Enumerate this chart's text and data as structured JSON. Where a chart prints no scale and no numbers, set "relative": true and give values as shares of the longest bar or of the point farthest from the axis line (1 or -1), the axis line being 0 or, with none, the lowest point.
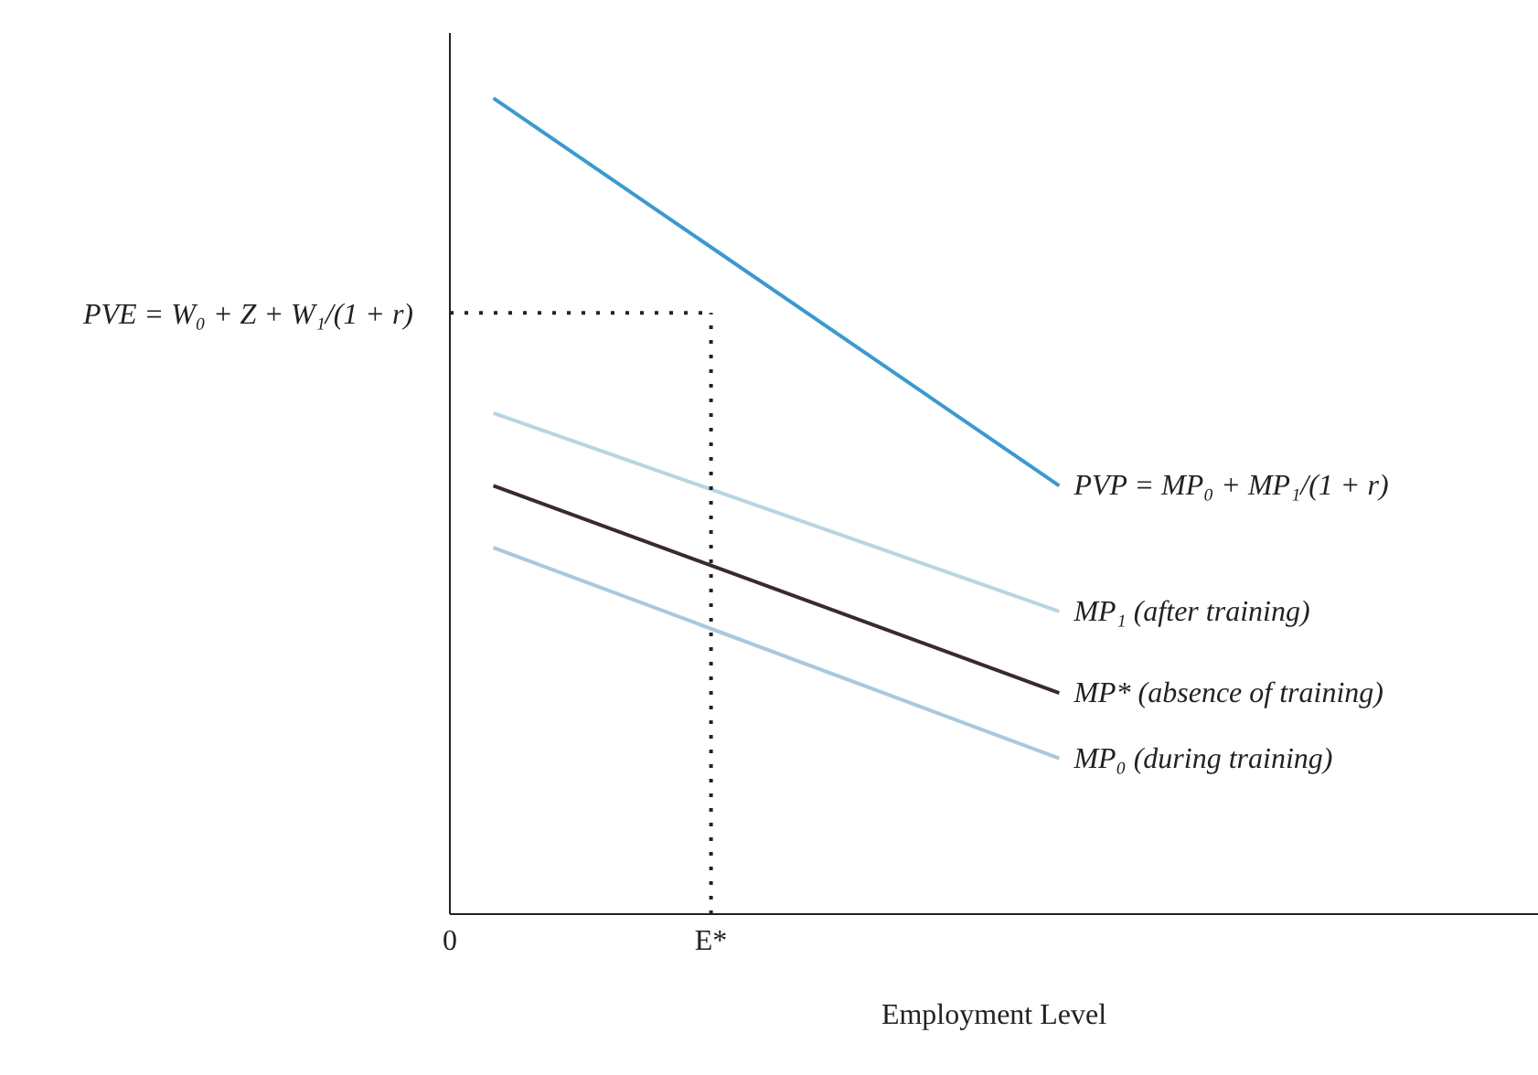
{
  "chart_data": {
    "type": "line",
    "relative": true,
    "xlabel": "Employment Level",
    "legend": false,
    "grid": false,
    "marker": "none",
    "categories": [
      "0",
      null,
      null,
      null,
      null,
      null,
      "E*",
      null,
      null,
      null,
      null,
      null,
      null,
      null,
      null,
      null,
      null,
      null,
      null,
      null,
      null,
      null,
      null,
      null,
      null,
      null
    ],
    "series": [
      {
        "name": "PVP = MP₀ + MP₁/(1 + r)",
        "color": "#3a9ad0",
        "values": [
          null,
          1,
          null,
          null,
          null,
          null,
          null,
          null,
          null,
          null,
          null,
          null,
          null,
          null,
          0.525,
          null,
          null,
          null,
          null,
          null,
          null,
          null,
          null,
          null,
          null,
          null
        ]
      },
      {
        "name": "MP₁ (after training)",
        "color": "#b9d4e3",
        "values": [
          null,
          0.614,
          null,
          null,
          null,
          null,
          null,
          null,
          null,
          null,
          null,
          null,
          null,
          null,
          0.371,
          null,
          null,
          null,
          null,
          null,
          null,
          null,
          null,
          null,
          null,
          null
        ]
      },
      {
        "name": "MP* (absence of training)",
        "color": "#3a2a30",
        "values": [
          null,
          0.525,
          null,
          null,
          null,
          null,
          null,
          null,
          null,
          null,
          null,
          null,
          null,
          null,
          0.271,
          null,
          null,
          null,
          null,
          null,
          null,
          null,
          null,
          null,
          null,
          null
        ]
      },
      {
        "name": "MP₀ (during training)",
        "color": "#a9c8dd",
        "values": [
          null,
          0.449,
          null,
          null,
          null,
          null,
          null,
          null,
          null,
          null,
          null,
          null,
          null,
          null,
          0.191,
          null,
          null,
          null,
          null,
          null,
          null,
          null,
          null,
          null,
          null,
          null
        ]
      }
    ],
    "ref_lines": [
      {
        "axis": "y",
        "value": 0.737,
        "label": "PVE = W₀ + Z + W₁/(1 + r)",
        "color": "#222222",
        "line_style": "dotted"
      },
      {
        "axis": "x",
        "value": "E*",
        "color": "#222222",
        "line_style": "dotted"
      }
    ]
  }
}
